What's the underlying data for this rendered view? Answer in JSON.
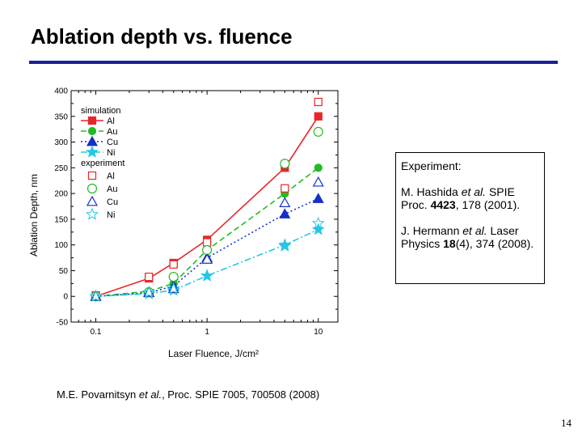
{
  "slide": {
    "title": "Ablation depth vs. fluence",
    "page_number": "14",
    "citation": {
      "prefix": "M.E. Povarnitsyn ",
      "etal": "et al.",
      "rest": ", Proc. SPIE 7005, 700508 (2008)"
    },
    "experiment_box": {
      "heading": "Experiment:",
      "ref1": {
        "author": "M. Hashida ",
        "etal": "et al.",
        "journal": " SPIE Proc. ",
        "volume": "4423",
        "pages": ", 178 (2001)."
      },
      "ref2": {
        "author": "J. Hermann ",
        "etal": "et al.",
        "journal": " Laser Physics ",
        "volume": "18",
        "pages": "(4), 374 (2008)."
      }
    }
  },
  "colors": {
    "title_rule": "#1a1f9c",
    "Al": "#e8262a",
    "Au": "#22bb22",
    "Cu": "#1530c8",
    "Ni": "#22c8e6"
  },
  "chart_data": {
    "type": "line",
    "xscale": "log",
    "xlabel": "Laser Fluence, J/cm²",
    "ylabel": "Ablation Depth, nm",
    "xlim": [
      0.06,
      15
    ],
    "ylim": [
      -50,
      400
    ],
    "xticks": [
      0.1,
      1,
      10
    ],
    "xtick_labels": [
      "0.1",
      "1",
      "10"
    ],
    "yticks": [
      -50,
      0,
      50,
      100,
      150,
      200,
      250,
      300,
      350,
      400
    ],
    "ytick_labels": [
      "-50",
      "0",
      "50",
      "100",
      "150",
      "200",
      "250",
      "300",
      "350",
      "400"
    ],
    "legend_position": "top-left",
    "legend_headers": [
      "simulation",
      "experiment"
    ],
    "simulation": [
      {
        "name": "Al",
        "color_key": "Al",
        "marker": "square",
        "dash": "solid",
        "x": [
          0.1,
          0.3,
          0.5,
          1,
          5,
          10
        ],
        "y": [
          0,
          35,
          65,
          110,
          250,
          350
        ]
      },
      {
        "name": "Au",
        "color_key": "Au",
        "marker": "circle",
        "dash": "dashed",
        "x": [
          0.1,
          0.3,
          0.5,
          1,
          5,
          10
        ],
        "y": [
          0,
          10,
          25,
          90,
          200,
          250
        ]
      },
      {
        "name": "Cu",
        "color_key": "Cu",
        "marker": "triangle",
        "dash": "dotted",
        "x": [
          0.1,
          0.3,
          0.5,
          1,
          5,
          10
        ],
        "y": [
          0,
          7,
          20,
          75,
          160,
          190
        ]
      },
      {
        "name": "Ni",
        "color_key": "Ni",
        "marker": "star",
        "dash": "dashdot",
        "x": [
          0.1,
          0.3,
          0.5,
          1,
          5,
          10
        ],
        "y": [
          0,
          5,
          12,
          40,
          100,
          130
        ]
      }
    ],
    "experiment": [
      {
        "name": "Al",
        "color_key": "Al",
        "marker": "square",
        "x": [
          0.1,
          0.3,
          0.5,
          1,
          5,
          10
        ],
        "y": [
          2,
          38,
          62,
          105,
          210,
          378
        ]
      },
      {
        "name": "Au",
        "color_key": "Au",
        "marker": "circle",
        "x": [
          0.1,
          0.3,
          0.5,
          1,
          5,
          10
        ],
        "y": [
          0,
          8,
          38,
          90,
          258,
          320
        ]
      },
      {
        "name": "Cu",
        "color_key": "Cu",
        "marker": "triangle",
        "x": [
          0.1,
          0.3,
          0.5,
          1,
          5,
          10
        ],
        "y": [
          0,
          8,
          15,
          72,
          182,
          222
        ]
      },
      {
        "name": "Ni",
        "color_key": "Ni",
        "marker": "star",
        "x": [
          0.1,
          0.3,
          0.5,
          1,
          5,
          10
        ],
        "y": [
          0,
          8,
          15,
          40,
          98,
          142
        ]
      }
    ]
  }
}
